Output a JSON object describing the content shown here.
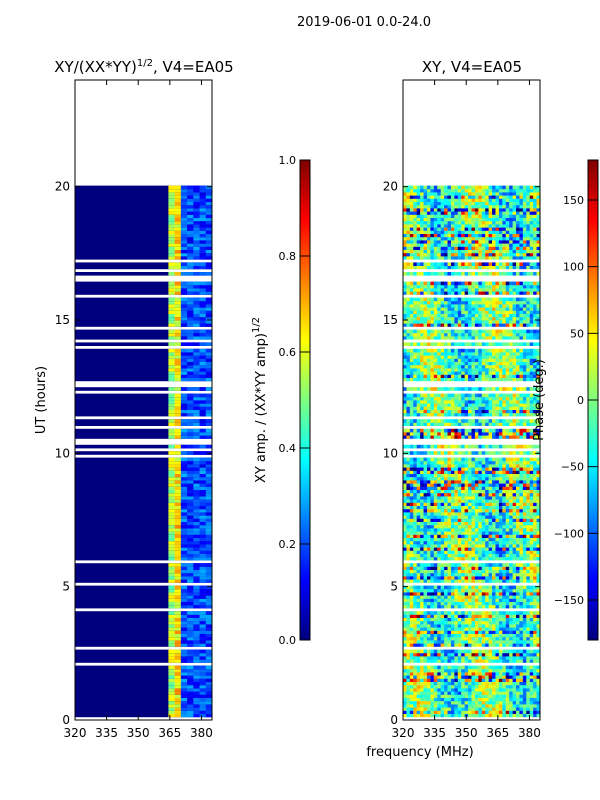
{
  "suptitle": "2019-06-01 0.0-24.0",
  "colormap": [
    "#00007f",
    "#0000ff",
    "#007fff",
    "#00ffff",
    "#7fff7f",
    "#ffff00",
    "#ff7f00",
    "#ff0000",
    "#7f0000"
  ],
  "chart_data": [
    {
      "type": "heatmap",
      "title_main": "XY/(XX*YY)",
      "title_exp": "1/2",
      "title_tail": ", V4=EA05",
      "xlabel": "",
      "ylabel": "UT (hours)",
      "xlim": [
        320,
        385
      ],
      "ylim": [
        0,
        24
      ],
      "xticks": [
        "320",
        "335",
        "350",
        "365",
        "380"
      ],
      "yticks": [
        "0",
        "5",
        "10",
        "15",
        "20"
      ],
      "data_extent_hours": [
        0,
        20
      ],
      "colorbar": {
        "label_main": "XY amp. / (XX*YY amp)",
        "label_exp": "1/2",
        "range": [
          0.0,
          1.0
        ],
        "ticks": [
          "0.0",
          "0.2",
          "0.4",
          "0.6",
          "0.8",
          "1.0"
        ]
      }
    },
    {
      "type": "heatmap",
      "title_main": "XY, V4=EA05",
      "xlabel": "frequency (MHz)",
      "ylabel": "",
      "xlim": [
        320,
        385
      ],
      "ylim": [
        0,
        24
      ],
      "xticks": [
        "320",
        "335",
        "350",
        "365",
        "380"
      ],
      "yticks": [
        "0",
        "5",
        "10",
        "15",
        "20"
      ],
      "data_extent_hours": [
        0,
        20
      ],
      "colorbar": {
        "label_main": "Phase (deg.)",
        "range": [
          -180,
          180
        ],
        "ticks": [
          "-150",
          "-100",
          "-50",
          "0",
          "50",
          "100",
          "150"
        ]
      }
    }
  ]
}
